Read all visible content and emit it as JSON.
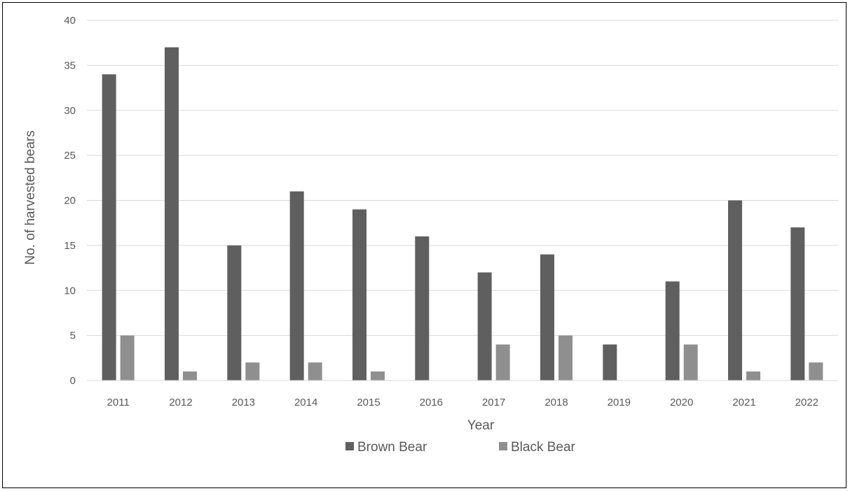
{
  "chart_data": {
    "type": "bar",
    "title": "",
    "xlabel": "Year",
    "ylabel": "No. of harvested bears",
    "categories": [
      "2011",
      "2012",
      "2013",
      "2014",
      "2015",
      "2016",
      "2017",
      "2018",
      "2019",
      "2020",
      "2021",
      "2022"
    ],
    "series": [
      {
        "name": "Brown Bear",
        "color": "#5f5f5f",
        "values": [
          34,
          37,
          15,
          21,
          19,
          16,
          12,
          14,
          4,
          11,
          20,
          17
        ]
      },
      {
        "name": "Black Bear",
        "color": "#8f8f8f",
        "values": [
          5,
          1,
          2,
          2,
          1,
          0,
          4,
          5,
          0,
          4,
          1,
          2
        ]
      }
    ],
    "ylim": [
      0,
      40
    ],
    "yticks": [
      0,
      5,
      10,
      15,
      20,
      25,
      30,
      35,
      40
    ],
    "grid": true,
    "legend_position": "bottom"
  }
}
